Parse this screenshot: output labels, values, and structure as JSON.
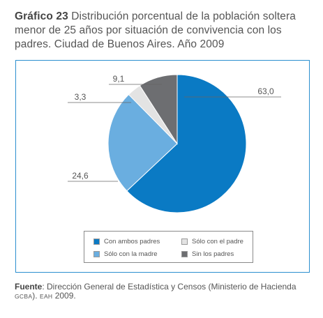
{
  "caption": {
    "label": "Gráfico 23",
    "text": "Distribución porcentual de la población soltera menor de 25 años por situación de convivencia con los padres. Ciudad de Buenos Aires. Año 2009"
  },
  "chart_data": {
    "type": "pie",
    "title": "",
    "slices": [
      {
        "name": "Con ambos padres",
        "value": 63.0,
        "label": "63,0",
        "color": "#0a7ac4"
      },
      {
        "name": "Sólo con la madre",
        "value": 24.6,
        "label": "24,6",
        "color": "#6aaee0"
      },
      {
        "name": "Sólo con el padre",
        "value": 3.3,
        "label": "3,3",
        "color": "#e3e3e3"
      },
      {
        "name": "Sin los padres",
        "value": 9.1,
        "label": "9,1",
        "color": "#6d6e71"
      }
    ],
    "legend_placement": "bottom"
  },
  "source": {
    "label": "Fuente",
    "text_a": ": Dirección General de Estadística y Censos (Ministerio de Hacienda ",
    "org": "GCBA",
    "text_b": "). ",
    "survey": "EAH",
    "text_c": " 2009."
  }
}
